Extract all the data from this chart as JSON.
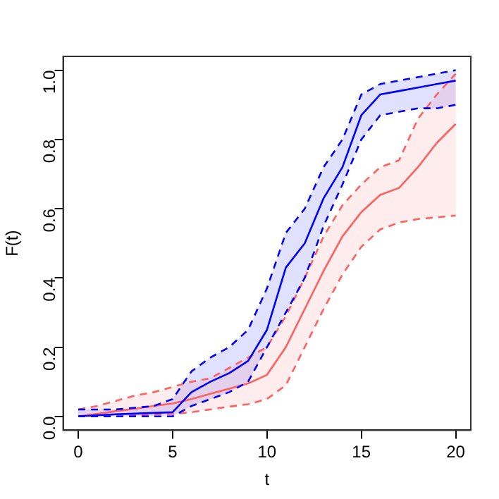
{
  "chart_data": {
    "type": "line",
    "xlabel": "t",
    "ylabel": "F(t)",
    "x": [
      0,
      1,
      2,
      3,
      4,
      5,
      6,
      7,
      8,
      9,
      10,
      11,
      12,
      13,
      14,
      15,
      16,
      17,
      18,
      19,
      20
    ],
    "series": [
      {
        "color": "#0000ff",
        "values": [
          0.0,
          0.003,
          0.006,
          0.008,
          0.01,
          0.012,
          0.07,
          0.1,
          0.125,
          0.16,
          0.25,
          0.43,
          0.5,
          0.63,
          0.72,
          0.87,
          0.93,
          0.94,
          0.95,
          0.96,
          0.97
        ],
        "lower": [
          0.0,
          0.0,
          0.0,
          0.0,
          0.0,
          0.0,
          0.03,
          0.05,
          0.07,
          0.1,
          0.2,
          0.3,
          0.4,
          0.55,
          0.67,
          0.8,
          0.87,
          0.88,
          0.89,
          0.89,
          0.9
        ],
        "upper": [
          0.02,
          0.02,
          0.02,
          0.025,
          0.03,
          0.05,
          0.13,
          0.17,
          0.2,
          0.25,
          0.37,
          0.53,
          0.6,
          0.72,
          0.8,
          0.93,
          0.96,
          0.97,
          0.98,
          0.99,
          1.0
        ]
      },
      {
        "color": "#0000ff",
        "line_style": "dashed",
        "values": [
          0.0,
          0.0,
          0.0,
          0.0,
          0.0,
          0.0,
          0.03,
          0.05,
          0.07,
          0.1,
          0.2,
          0.3,
          0.4,
          0.55,
          0.67,
          0.8,
          0.87,
          0.88,
          0.89,
          0.89,
          0.9
        ]
      },
      {
        "color": "#0000ff",
        "line_style": "dashed",
        "values": [
          0.02,
          0.02,
          0.02,
          0.025,
          0.03,
          0.05,
          0.13,
          0.17,
          0.2,
          0.25,
          0.37,
          0.53,
          0.6,
          0.72,
          0.8,
          0.93,
          0.96,
          0.97,
          0.98,
          0.99,
          1.0
        ]
      },
      {
        "color": "#ff6060",
        "values": [
          0.0,
          0.007,
          0.015,
          0.022,
          0.03,
          0.037,
          0.05,
          0.065,
          0.08,
          0.095,
          0.12,
          0.2,
          0.31,
          0.42,
          0.52,
          0.59,
          0.64,
          0.66,
          0.72,
          0.79,
          0.845
        ],
        "lower": [
          0.0,
          0.0,
          0.0,
          0.003,
          0.005,
          0.007,
          0.012,
          0.02,
          0.028,
          0.035,
          0.05,
          0.09,
          0.2,
          0.31,
          0.41,
          0.49,
          0.54,
          0.56,
          0.57,
          0.575,
          0.58
        ],
        "upper": [
          0.02,
          0.03,
          0.045,
          0.06,
          0.07,
          0.085,
          0.1,
          0.11,
          0.14,
          0.17,
          0.2,
          0.29,
          0.4,
          0.52,
          0.61,
          0.67,
          0.72,
          0.74,
          0.86,
          0.93,
          0.99
        ]
      },
      {
        "color": "#ff6060",
        "line_style": "dashed",
        "values": [
          0.0,
          0.0,
          0.0,
          0.003,
          0.005,
          0.007,
          0.012,
          0.02,
          0.028,
          0.035,
          0.05,
          0.09,
          0.2,
          0.31,
          0.41,
          0.49,
          0.54,
          0.56,
          0.57,
          0.575,
          0.58
        ]
      },
      {
        "color": "#ff6060",
        "line_style": "dashed",
        "values": [
          0.02,
          0.03,
          0.045,
          0.06,
          0.07,
          0.085,
          0.1,
          0.11,
          0.14,
          0.17,
          0.2,
          0.29,
          0.4,
          0.52,
          0.61,
          0.67,
          0.72,
          0.74,
          0.86,
          0.93,
          0.99
        ]
      }
    ],
    "xlim": [
      -0.8,
      20.8
    ],
    "xticks": [
      0,
      5,
      10,
      15,
      20
    ],
    "ylim": [
      -0.04,
      1.04
    ],
    "yticks": [
      {
        "value": 0,
        "label": "0.0"
      },
      {
        "value": 0.2,
        "label": "0.2"
      },
      {
        "value": 0.4,
        "label": "0.4"
      },
      {
        "value": 0.6,
        "label": "0.6"
      },
      {
        "value": 0.8,
        "label": "0.8"
      },
      {
        "value": 1,
        "label": "1.0"
      }
    ],
    "grid": false,
    "legend": false,
    "marker": "none",
    "line_style": "solid"
  }
}
